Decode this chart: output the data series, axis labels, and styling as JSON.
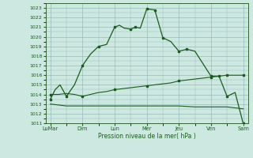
{
  "background_color": "#cce8e0",
  "grid_color": "#99bbbb",
  "line_color": "#1a5c1a",
  "xlabel": "Pression niveau de la mer( hPa )",
  "ylim": [
    1011,
    1023.5
  ],
  "yticks": [
    1011,
    1012,
    1013,
    1014,
    1015,
    1016,
    1017,
    1018,
    1019,
    1020,
    1021,
    1022,
    1023
  ],
  "x_labels": [
    "LuMar",
    "Dim",
    "Lun",
    "Mer",
    "Jeu",
    "Ven",
    "Sam"
  ],
  "x_positions": [
    0,
    2,
    4,
    6,
    8,
    10,
    12
  ],
  "line1_x": [
    0,
    0.3,
    0.6,
    1.0,
    1.5,
    2.0,
    2.5,
    3.0,
    3.5,
    4.0,
    4.3,
    4.6,
    5.0,
    5.3,
    5.6,
    6.0,
    6.5,
    7.0,
    7.5,
    8.0,
    8.5,
    9.0,
    10.0,
    10.5,
    11.0,
    11.5,
    12.0
  ],
  "line1_y": [
    1013.5,
    1014.5,
    1015.0,
    1013.8,
    1015.0,
    1017.0,
    1018.2,
    1019.0,
    1019.2,
    1021.0,
    1021.2,
    1020.9,
    1020.8,
    1021.0,
    1020.9,
    1022.9,
    1022.8,
    1019.9,
    1019.5,
    1018.5,
    1018.7,
    1018.5,
    1015.9,
    1015.9,
    1013.8,
    1014.2,
    1011.0
  ],
  "line2_x": [
    0,
    0.5,
    1,
    1.5,
    2,
    2.5,
    3,
    3.5,
    4,
    4.5,
    5,
    5.5,
    6,
    6.5,
    7,
    7.5,
    8,
    8.5,
    9,
    9.5,
    10,
    10.5,
    11,
    11.5,
    12
  ],
  "line2_y": [
    1014.0,
    1014.0,
    1014.1,
    1014.0,
    1013.8,
    1014.0,
    1014.2,
    1014.3,
    1014.5,
    1014.6,
    1014.7,
    1014.8,
    1014.9,
    1015.0,
    1015.1,
    1015.2,
    1015.4,
    1015.5,
    1015.6,
    1015.7,
    1015.8,
    1015.9,
    1016.0,
    1016.0,
    1016.0
  ],
  "line3_x": [
    0,
    0.5,
    1,
    2,
    3,
    4,
    5,
    6,
    7,
    8,
    9,
    10,
    10.5,
    11,
    11.5,
    12
  ],
  "line3_y": [
    1013.0,
    1012.9,
    1012.8,
    1012.8,
    1012.8,
    1012.8,
    1012.8,
    1012.8,
    1012.8,
    1012.8,
    1012.7,
    1012.7,
    1012.7,
    1012.7,
    1012.6,
    1012.5
  ],
  "markers1_x": [
    0,
    1.0,
    2.0,
    3.0,
    4.0,
    5.0,
    5.3,
    6.0,
    6.5,
    7.0,
    8.0,
    8.5,
    10.0,
    10.5,
    11.0,
    12.0
  ],
  "markers1_y": [
    1013.5,
    1013.8,
    1017.0,
    1019.0,
    1021.0,
    1020.8,
    1021.0,
    1022.9,
    1022.8,
    1019.9,
    1018.5,
    1018.7,
    1015.9,
    1015.9,
    1013.8,
    1011.0
  ],
  "markers2_x": [
    0,
    2.0,
    4.0,
    6.0,
    8.0,
    10.0,
    11.0,
    12.0
  ],
  "markers2_y": [
    1014.0,
    1013.8,
    1014.5,
    1014.9,
    1015.4,
    1015.8,
    1016.0,
    1016.0
  ]
}
